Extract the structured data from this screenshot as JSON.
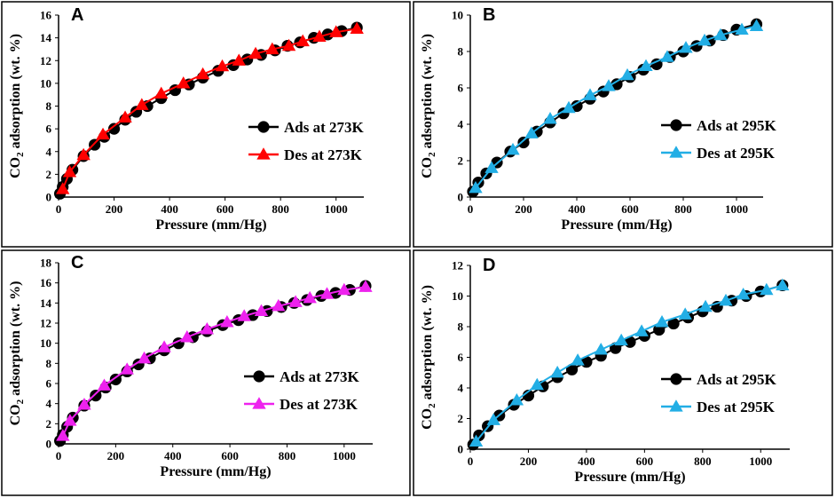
{
  "chart_data": [
    {
      "type": "line",
      "panel": "A",
      "xlabel": "Pressure (mm/Hg)",
      "ylabel": "CO2 adsorption (wt. %)",
      "ylabel_main": "CO",
      "ylabel_sub": "2",
      "ylabel_rest": " adsorption (wt. %)",
      "xlim": [
        0,
        1100
      ],
      "ylim": [
        0,
        16
      ],
      "xticks": [
        0,
        200,
        400,
        600,
        800,
        1000
      ],
      "yticks": [
        0,
        2,
        4,
        6,
        8,
        10,
        12,
        14,
        16
      ],
      "legend_position": "right",
      "series": [
        {
          "name": "Ads at 273K",
          "marker": "circle",
          "color": "#000000",
          "x": [
            5,
            15,
            30,
            50,
            90,
            130,
            165,
            200,
            240,
            280,
            320,
            370,
            420,
            470,
            520,
            575,
            630,
            680,
            730,
            780,
            825,
            870,
            920,
            970,
            1020,
            1075
          ],
          "y": [
            0.3,
            0.9,
            1.6,
            2.4,
            3.6,
            4.6,
            5.3,
            6.0,
            6.8,
            7.5,
            8.0,
            8.7,
            9.4,
            9.9,
            10.5,
            11.1,
            11.6,
            12.1,
            12.5,
            12.9,
            13.3,
            13.6,
            14.0,
            14.3,
            14.6,
            14.9
          ]
        },
        {
          "name": "Des at 273K",
          "marker": "triangle",
          "color": "#ff0000",
          "x": [
            15,
            40,
            90,
            160,
            240,
            300,
            370,
            450,
            520,
            590,
            650,
            710,
            770,
            830,
            880,
            940,
            1000,
            1075
          ],
          "y": [
            0.7,
            2.2,
            3.7,
            5.5,
            7.0,
            8.1,
            9.1,
            10.0,
            10.8,
            11.5,
            12.0,
            12.6,
            13.0,
            13.3,
            13.7,
            14.1,
            14.5,
            14.8
          ]
        }
      ]
    },
    {
      "type": "line",
      "panel": "B",
      "xlabel": "Pressure (mm/Hg)",
      "ylabel": "CO2 adsorption (wt. %)",
      "ylabel_main": "CO",
      "ylabel_sub": "2",
      "ylabel_rest": " adsorption (wt. %)",
      "xlim": [
        0,
        1100
      ],
      "ylim": [
        0,
        10
      ],
      "xticks": [
        0,
        200,
        400,
        600,
        800,
        1000
      ],
      "yticks": [
        0,
        2,
        4,
        6,
        8,
        10
      ],
      "legend_position": "right",
      "series": [
        {
          "name": "Ads at 295K",
          "marker": "circle",
          "color": "#000000",
          "x": [
            10,
            30,
            60,
            100,
            150,
            200,
            250,
            300,
            350,
            400,
            450,
            500,
            550,
            600,
            650,
            700,
            750,
            800,
            850,
            900,
            950,
            1000,
            1075
          ],
          "y": [
            0.3,
            0.8,
            1.3,
            1.9,
            2.5,
            3.0,
            3.6,
            4.1,
            4.6,
            5.0,
            5.4,
            5.8,
            6.2,
            6.6,
            7.0,
            7.3,
            7.7,
            8.0,
            8.3,
            8.6,
            8.9,
            9.2,
            9.5
          ]
        },
        {
          "name": "Des at 295K",
          "marker": "triangle",
          "color": "#22aee5",
          "x": [
            20,
            80,
            160,
            230,
            300,
            370,
            450,
            520,
            590,
            660,
            740,
            810,
            880,
            940,
            1020,
            1075
          ],
          "y": [
            0.5,
            1.6,
            2.6,
            3.5,
            4.3,
            4.9,
            5.6,
            6.1,
            6.7,
            7.2,
            7.7,
            8.2,
            8.6,
            8.9,
            9.2,
            9.4
          ]
        }
      ]
    },
    {
      "type": "line",
      "panel": "C",
      "xlabel": "Pressure (mm/Hg)",
      "ylabel": "CO2 adsorption (wt. %)",
      "ylabel_main": "CO",
      "ylabel_sub": "2",
      "ylabel_rest": " adsorption (wt. %)",
      "xlim": [
        0,
        1100
      ],
      "ylim": [
        0,
        18
      ],
      "xticks": [
        0,
        200,
        400,
        600,
        800,
        1000
      ],
      "yticks": [
        0,
        2,
        4,
        6,
        8,
        10,
        12,
        14,
        16,
        18
      ],
      "legend_position": "right",
      "series": [
        {
          "name": "Ads at 273K",
          "marker": "circle",
          "color": "#000000",
          "x": [
            5,
            15,
            30,
            50,
            90,
            130,
            165,
            200,
            240,
            280,
            320,
            370,
            420,
            470,
            520,
            575,
            630,
            680,
            730,
            780,
            825,
            870,
            920,
            970,
            1020,
            1075
          ],
          "y": [
            0.3,
            0.9,
            1.7,
            2.6,
            3.8,
            4.8,
            5.6,
            6.4,
            7.2,
            7.9,
            8.5,
            9.3,
            10.0,
            10.6,
            11.2,
            11.8,
            12.3,
            12.8,
            13.2,
            13.6,
            14.0,
            14.3,
            14.7,
            15.0,
            15.3,
            15.7
          ]
        },
        {
          "name": "Des at 273K",
          "marker": "triangle",
          "color": "#ee22ee",
          "x": [
            15,
            40,
            90,
            160,
            240,
            300,
            370,
            450,
            520,
            590,
            650,
            710,
            770,
            830,
            880,
            940,
            1000,
            1075
          ],
          "y": [
            0.8,
            2.3,
            3.9,
            5.8,
            7.4,
            8.5,
            9.6,
            10.6,
            11.4,
            12.1,
            12.7,
            13.2,
            13.7,
            14.1,
            14.5,
            14.9,
            15.3,
            15.6
          ]
        }
      ]
    },
    {
      "type": "line",
      "panel": "D",
      "xlabel": "Pressure (mm/Hg)",
      "ylabel": "CO2 adsorption (wt. %)",
      "ylabel_main": "CO",
      "ylabel_sub": "2",
      "ylabel_rest": " adsorption (wt. %)",
      "xlim": [
        0,
        1100
      ],
      "ylim": [
        0,
        12
      ],
      "xticks": [
        0,
        200,
        400,
        600,
        800,
        1000
      ],
      "yticks": [
        0,
        2,
        4,
        6,
        8,
        10,
        12
      ],
      "legend_position": "right",
      "series": [
        {
          "name": "Ads at 295K",
          "marker": "circle",
          "color": "#000000",
          "x": [
            10,
            30,
            60,
            100,
            150,
            200,
            250,
            300,
            350,
            400,
            450,
            500,
            550,
            600,
            650,
            700,
            750,
            800,
            850,
            900,
            950,
            1000,
            1075
          ],
          "y": [
            0.3,
            0.9,
            1.5,
            2.2,
            2.9,
            3.5,
            4.1,
            4.7,
            5.2,
            5.7,
            6.1,
            6.6,
            7.0,
            7.4,
            7.8,
            8.2,
            8.6,
            9.0,
            9.3,
            9.7,
            10.0,
            10.3,
            10.7
          ]
        },
        {
          "name": "Des at 295K",
          "marker": "triangle",
          "color": "#22aee5",
          "x": [
            20,
            80,
            160,
            230,
            300,
            370,
            450,
            520,
            590,
            660,
            740,
            810,
            880,
            940,
            1020,
            1075
          ],
          "y": [
            0.5,
            1.9,
            3.2,
            4.2,
            5.0,
            5.8,
            6.5,
            7.1,
            7.7,
            8.3,
            8.8,
            9.3,
            9.7,
            10.1,
            10.4,
            10.7
          ]
        }
      ]
    }
  ]
}
